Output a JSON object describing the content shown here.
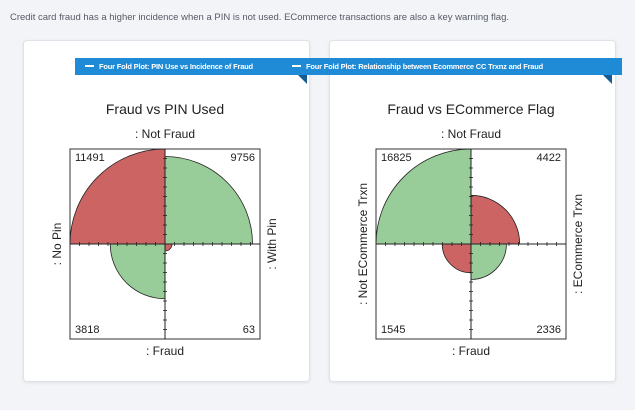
{
  "caption": "Credit card fraud has a higher incidence when a PIN is not used. ECommerce transactions are also a key warning flag.",
  "panels": [
    {
      "tab_label": "Four Fold Plot: PIN Use vs Incidence of Fraud",
      "colors": {
        "high": "#98cc98",
        "low": "#cd6464"
      }
    },
    {
      "tab_label": "Four Fold Plot: Relationship between Ecommerce CC Trxnz and Fraud",
      "colors": {
        "high": "#98cc98",
        "low": "#cd6464"
      }
    }
  ],
  "chart_data": [
    {
      "type": "fourfold",
      "title": "Fraud vs PIN Used",
      "top_label": ": Not Fraud",
      "bottom_label": ": Fraud",
      "left_label": ": No Pin",
      "right_label": ": With Pin",
      "cells": {
        "top_left": 11491,
        "top_right": 9756,
        "bottom_left": 3818,
        "bottom_right": 63
      },
      "cell_labels": {
        "top_left": "11491",
        "top_right": "9756",
        "bottom_left": "3818",
        "bottom_right": "63"
      },
      "quadrant_colors": {
        "top_left": "low",
        "top_right": "high",
        "bottom_left": "high",
        "bottom_right": "low"
      }
    },
    {
      "type": "fourfold",
      "title": "Fraud vs ECommerce Flag",
      "top_label": ": Not Fraud",
      "bottom_label": ": Fraud",
      "left_label": ": Not ECommerce Trxn",
      "right_label": ": ECommerce Trxn",
      "cells": {
        "top_left": 16825,
        "top_right": 4422,
        "bottom_left": 1545,
        "bottom_right": 2336
      },
      "cell_labels": {
        "top_left": "16825",
        "top_right": "4422",
        "bottom_left": "1545",
        "bottom_right": "2336"
      },
      "quadrant_colors": {
        "top_left": "high",
        "top_right": "low",
        "bottom_left": "low",
        "bottom_right": "high"
      }
    }
  ]
}
